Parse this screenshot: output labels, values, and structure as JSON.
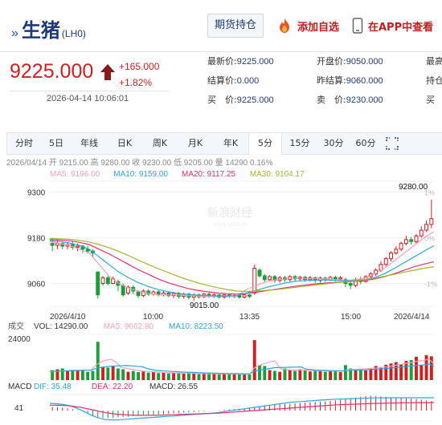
{
  "header": {
    "arrow_glyph": "»",
    "title": "生猪",
    "code": "(LH0)",
    "futures_button": "期货持仓",
    "add_favorite": "添加自选",
    "app_link": "在APP中查看"
  },
  "quote": {
    "price": "9225.000",
    "change": "+165.000",
    "change_pct": "+1.82%",
    "datetime": "2026-04-14 10:06:01",
    "col1": [
      {
        "label": "最新价:",
        "value": "9225.000"
      },
      {
        "label": "结算价:",
        "value": "0.000"
      },
      {
        "label": "买　价:",
        "value": "9225.000"
      }
    ],
    "col2": [
      {
        "label": "开盘价:",
        "value": "9050.000"
      },
      {
        "label": "昨结算:",
        "value": "9060.000"
      },
      {
        "label": "卖　价:",
        "value": "9230.000"
      }
    ],
    "col3": [
      {
        "label": "最高",
        "value": ""
      },
      {
        "label": "持仓",
        "value": ""
      },
      {
        "label": "买",
        "value": ""
      }
    ]
  },
  "tabs": [
    "分时",
    "5日",
    "年线",
    "日K",
    "周K",
    "月K",
    "年K",
    "5分",
    "15分",
    "30分",
    "60分"
  ],
  "active_tab": "5分",
  "colors": {
    "up": "#d01f1f",
    "down": "#1a9e3a",
    "ma5": "#f5a0c0",
    "ma10": "#2aa7e0",
    "ma20": "#e0306e",
    "ma30": "#9cb82c",
    "navy": "#1f3a7a"
  },
  "chart": {
    "info_line": "2026/04/14 开 9215.00 高 9280.00 收 9230.00 低 9205.00 量 14290 0.16%",
    "ma_legend": [
      {
        "label": "MA5: 9196.00",
        "color": "#f5a0c0"
      },
      {
        "label": "MA10: 9159.00",
        "color": "#2aa7e0"
      },
      {
        "label": "MA20: 9117.25",
        "color": "#e0306e"
      },
      {
        "label": "MA30: 9104.17",
        "color": "#9cb82c"
      }
    ],
    "price_ticks": [
      "9300",
      "9180",
      "9060"
    ],
    "right_pct": [
      "1%",
      "0%",
      "-1%"
    ],
    "high_label": "9280.00",
    "low_label": "9015.00",
    "time_labels": [
      "2026/4/10",
      "10:00",
      "13:35",
      "15:00",
      "2026/4/14"
    ],
    "watermark": "新浪财经",
    "watermark_sub": "sina.com.cn",
    "vol_title": "成交",
    "vol_legend": [
      {
        "label": "VOL: 14290.00",
        "color": "#333333"
      },
      {
        "label": "MA5: 9662.80",
        "color": "#f5a0c0"
      },
      {
        "label": "MA10: 8223.50",
        "color": "#2aa7e0"
      }
    ],
    "vol_tick": "24000",
    "macd_title": "MACD",
    "macd_legend": [
      {
        "label": "DIF: 35.48",
        "color": "#2aa7e0"
      },
      {
        "label": "DEA: 22.20",
        "color": "#e0306e"
      },
      {
        "label": "MACD: 26.55",
        "color": "#333333"
      }
    ],
    "macd_tick": "41"
  },
  "chart_data": {
    "type": "candlestick",
    "price_axis": {
      "ylim": [
        9000,
        9320
      ],
      "ticks": [
        9300,
        9180,
        9060
      ]
    },
    "candles": [
      {
        "o": 9165,
        "c": 9160,
        "h": 9180,
        "l": 9145
      },
      {
        "o": 9160,
        "c": 9165,
        "h": 9175,
        "l": 9150
      },
      {
        "o": 9165,
        "c": 9158,
        "h": 9170,
        "l": 9150
      },
      {
        "o": 9158,
        "c": 9162,
        "h": 9168,
        "l": 9150
      },
      {
        "o": 9162,
        "c": 9155,
        "h": 9170,
        "l": 9148
      },
      {
        "o": 9155,
        "c": 9158,
        "h": 9165,
        "l": 9145
      },
      {
        "o": 9158,
        "c": 9150,
        "h": 9162,
        "l": 9140
      },
      {
        "o": 9150,
        "c": 9145,
        "h": 9158,
        "l": 9138
      },
      {
        "o": 9145,
        "c": 9140,
        "h": 9150,
        "l": 9130
      },
      {
        "o": 9090,
        "c": 9030,
        "h": 9092,
        "l": 9020
      },
      {
        "o": 9060,
        "c": 9075,
        "h": 9080,
        "l": 9055
      },
      {
        "o": 9075,
        "c": 9060,
        "h": 9080,
        "l": 9055
      },
      {
        "o": 9060,
        "c": 9072,
        "h": 9078,
        "l": 9058
      },
      {
        "o": 9065,
        "c": 9055,
        "h": 9070,
        "l": 9040
      },
      {
        "o": 9055,
        "c": 9030,
        "h": 9060,
        "l": 9025
      },
      {
        "o": 9035,
        "c": 9050,
        "h": 9055,
        "l": 9030
      },
      {
        "o": 9050,
        "c": 9040,
        "h": 9055,
        "l": 9032
      },
      {
        "o": 9038,
        "c": 9028,
        "h": 9042,
        "l": 9022
      },
      {
        "o": 9028,
        "c": 9040,
        "h": 9045,
        "l": 9024
      },
      {
        "o": 9040,
        "c": 9032,
        "h": 9045,
        "l": 9028
      },
      {
        "o": 9032,
        "c": 9038,
        "h": 9042,
        "l": 9028
      },
      {
        "o": 9038,
        "c": 9030,
        "h": 9042,
        "l": 9026
      },
      {
        "o": 9030,
        "c": 9035,
        "h": 9040,
        "l": 9026
      },
      {
        "o": 9035,
        "c": 9028,
        "h": 9040,
        "l": 9024
      },
      {
        "o": 9028,
        "c": 9034,
        "h": 9038,
        "l": 9022
      },
      {
        "o": 9034,
        "c": 9026,
        "h": 9038,
        "l": 9020
      },
      {
        "o": 9026,
        "c": 9032,
        "h": 9036,
        "l": 9020
      },
      {
        "o": 9032,
        "c": 9024,
        "h": 9036,
        "l": 9018
      },
      {
        "o": 9024,
        "c": 9030,
        "h": 9034,
        "l": 9015
      },
      {
        "o": 9030,
        "c": 9025,
        "h": 9034,
        "l": 9020
      },
      {
        "o": 9025,
        "c": 9032,
        "h": 9036,
        "l": 9022
      },
      {
        "o": 9032,
        "c": 9026,
        "h": 9036,
        "l": 9022
      },
      {
        "o": 9026,
        "c": 9030,
        "h": 9034,
        "l": 9022
      },
      {
        "o": 9030,
        "c": 9024,
        "h": 9032,
        "l": 9020
      },
      {
        "o": 9024,
        "c": 9030,
        "h": 9034,
        "l": 9020
      },
      {
        "o": 9030,
        "c": 9026,
        "h": 9034,
        "l": 9022
      },
      {
        "o": 9026,
        "c": 9028,
        "h": 9032,
        "l": 9022
      },
      {
        "o": 9028,
        "c": 9024,
        "h": 9032,
        "l": 9020
      },
      {
        "o": 9024,
        "c": 9030,
        "h": 9034,
        "l": 9020
      },
      {
        "o": 9030,
        "c": 9026,
        "h": 9032,
        "l": 9022
      },
      {
        "o": 9035,
        "c": 9100,
        "h": 9110,
        "l": 9030
      },
      {
        "o": 9095,
        "c": 9080,
        "h": 9100,
        "l": 9075
      },
      {
        "o": 9080,
        "c": 9070,
        "h": 9085,
        "l": 9062
      },
      {
        "o": 9070,
        "c": 9078,
        "h": 9082,
        "l": 9065
      },
      {
        "o": 9078,
        "c": 9068,
        "h": 9082,
        "l": 9062
      },
      {
        "o": 9068,
        "c": 9075,
        "h": 9080,
        "l": 9062
      },
      {
        "o": 9075,
        "c": 9070,
        "h": 9080,
        "l": 9064
      },
      {
        "o": 9070,
        "c": 9078,
        "h": 9082,
        "l": 9065
      },
      {
        "o": 9078,
        "c": 9072,
        "h": 9082,
        "l": 9066
      },
      {
        "o": 9072,
        "c": 9076,
        "h": 9080,
        "l": 9066
      },
      {
        "o": 9076,
        "c": 9070,
        "h": 9080,
        "l": 9064
      },
      {
        "o": 9070,
        "c": 9075,
        "h": 9080,
        "l": 9065
      },
      {
        "o": 9075,
        "c": 9068,
        "h": 9078,
        "l": 9062
      },
      {
        "o": 9068,
        "c": 9074,
        "h": 9078,
        "l": 9062
      },
      {
        "o": 9074,
        "c": 9070,
        "h": 9078,
        "l": 9064
      },
      {
        "o": 9070,
        "c": 9076,
        "h": 9080,
        "l": 9066
      },
      {
        "o": 9076,
        "c": 9072,
        "h": 9080,
        "l": 9066
      },
      {
        "o": 9072,
        "c": 9075,
        "h": 9080,
        "l": 9066
      },
      {
        "o": 9070,
        "c": 9060,
        "h": 9075,
        "l": 9050
      },
      {
        "o": 9060,
        "c": 9055,
        "h": 9068,
        "l": 9045
      },
      {
        "o": 9055,
        "c": 9070,
        "h": 9075,
        "l": 9050
      },
      {
        "o": 9070,
        "c": 9065,
        "h": 9078,
        "l": 9058
      },
      {
        "o": 9065,
        "c": 9078,
        "h": 9082,
        "l": 9062
      },
      {
        "o": 9078,
        "c": 9085,
        "h": 9090,
        "l": 9072
      },
      {
        "o": 9085,
        "c": 9095,
        "h": 9100,
        "l": 9080
      },
      {
        "o": 9095,
        "c": 9110,
        "h": 9118,
        "l": 9090
      },
      {
        "o": 9110,
        "c": 9125,
        "h": 9130,
        "l": 9105
      },
      {
        "o": 9125,
        "c": 9140,
        "h": 9145,
        "l": 9118
      },
      {
        "o": 9140,
        "c": 9150,
        "h": 9158,
        "l": 9135
      },
      {
        "o": 9150,
        "c": 9165,
        "h": 9170,
        "l": 9145
      },
      {
        "o": 9165,
        "c": 9175,
        "h": 9185,
        "l": 9160
      },
      {
        "o": 9175,
        "c": 9170,
        "h": 9182,
        "l": 9162
      },
      {
        "o": 9170,
        "c": 9185,
        "h": 9190,
        "l": 9165
      },
      {
        "o": 9185,
        "c": 9200,
        "h": 9210,
        "l": 9180
      },
      {
        "o": 9200,
        "c": 9215,
        "h": 9225,
        "l": 9195
      },
      {
        "o": 9215,
        "c": 9230,
        "h": 9280,
        "l": 9205
      }
    ],
    "ma_lines": {
      "MA5": [
        9170,
        9165,
        9160,
        9150,
        9140,
        9110,
        9080,
        9060,
        9048,
        9040,
        9034,
        9030,
        9030,
        9030,
        9028,
        9027,
        9026,
        9026,
        9026,
        9027,
        9045,
        9055,
        9065,
        9070,
        9072,
        9074,
        9073,
        9073,
        9072,
        9070,
        9068,
        9070,
        9074,
        9085,
        9100,
        9120,
        9140,
        9160,
        9180,
        9196
      ],
      "MA10": [
        9172,
        9170,
        9166,
        9160,
        9150,
        9130,
        9110,
        9090,
        9075,
        9062,
        9052,
        9044,
        9038,
        9034,
        9031,
        9029,
        9028,
        9027,
        9027,
        9028,
        9035,
        9042,
        9050,
        9056,
        9062,
        9066,
        9068,
        9069,
        9069,
        9068,
        9067,
        9068,
        9070,
        9076,
        9086,
        9100,
        9115,
        9130,
        9145,
        9159
      ],
      "MA20": [
        9175,
        9174,
        9172,
        9168,
        9162,
        9150,
        9138,
        9124,
        9110,
        9096,
        9084,
        9072,
        9062,
        9054,
        9047,
        9042,
        9038,
        9035,
        9033,
        9032,
        9034,
        9037,
        9041,
        9045,
        9049,
        9053,
        9056,
        9059,
        9061,
        9063,
        9064,
        9066,
        9068,
        9072,
        9078,
        9086,
        9095,
        9104,
        9111,
        9117
      ],
      "MA30": [
        9178,
        9177,
        9176,
        9173,
        9169,
        9162,
        9154,
        9144,
        9133,
        9121,
        9110,
        9099,
        9089,
        9079,
        9070,
        9062,
        9055,
        9049,
        9044,
        9040,
        9039,
        9040,
        9042,
        9044,
        9047,
        9050,
        9053,
        9056,
        9059,
        9062,
        9064,
        9067,
        9070,
        9074,
        9079,
        9084,
        9090,
        9095,
        9100,
        9104
      ]
    },
    "volume": {
      "ylim": [
        0,
        26000
      ],
      "values": [
        6000,
        6500,
        7000,
        5500,
        6200,
        5800,
        6000,
        5000,
        5500,
        23000,
        8000,
        7500,
        8200,
        7000,
        6500,
        5000,
        5500,
        4800,
        5200,
        4500,
        5000,
        4200,
        4600,
        4000,
        4400,
        4200,
        3800,
        4600,
        4000,
        3600,
        4200,
        3900,
        3700,
        3500,
        3800,
        3600,
        3400,
        3900,
        3500,
        3300,
        24000,
        9000,
        8500,
        6000,
        5500,
        5000,
        7000,
        6000,
        5500,
        6500,
        5800,
        5200,
        6000,
        5500,
        5000,
        5600,
        5300,
        4800,
        9000,
        7000,
        6000,
        6500,
        5800,
        7200,
        8500,
        7800,
        9200,
        10000,
        10800,
        9500,
        11500,
        12000,
        14000,
        9000,
        15000,
        14290
      ],
      "ma5": [
        5000,
        5200,
        5400,
        5600,
        5800,
        6000,
        6000,
        6000,
        5900,
        9000,
        11000,
        12000,
        12500,
        10500,
        7500,
        7000,
        6500,
        6000,
        5500,
        5200,
        5000,
        4800,
        4600,
        4500,
        4400,
        4300,
        4200,
        4200,
        4100,
        4000,
        3950,
        3900,
        3850,
        3800,
        3750,
        3700,
        3650,
        3600,
        3550,
        3500,
        7500,
        9000,
        10000,
        11000,
        11500,
        6800,
        6400,
        6000,
        6000,
        6000,
        5900,
        5800,
        5700,
        5600,
        5500,
        5500,
        5400,
        5300,
        6000,
        6400,
        6500,
        6700,
        6900,
        7100,
        7300,
        7600,
        8100,
        8600,
        9200,
        9700,
        10300,
        10800,
        11500,
        11700,
        12700,
        9662
      ],
      "ma10": [
        5200,
        5300,
        5400,
        5500,
        5600,
        5700,
        5800,
        5900,
        5900,
        7000,
        7600,
        8000,
        8400,
        8500,
        8600,
        8700,
        8500,
        8300,
        8000,
        7000,
        6200,
        5800,
        5600,
        5400,
        5200,
        5000,
        4800,
        4700,
        4600,
        4500,
        4400,
        4300,
        4200,
        4100,
        4000,
        3950,
        3900,
        3850,
        3800,
        3700,
        5500,
        6000,
        6500,
        7000,
        7500,
        7500,
        7600,
        7700,
        7800,
        7900,
        6600,
        6300,
        6000,
        5900,
        5800,
        5700,
        5600,
        5550,
        5700,
        5900,
        6000,
        6100,
        6200,
        6400,
        6600,
        6800,
        7100,
        7400,
        7700,
        8000,
        8300,
        8600,
        8900,
        9100,
        9700,
        8223
      ]
    },
    "macd": {
      "bars": [
        10,
        9,
        8,
        6,
        4,
        1,
        -3,
        -8,
        -14,
        -18,
        -20,
        -21,
        -20,
        -19,
        -18,
        -17,
        -16,
        -15,
        -14,
        -13,
        -12,
        -11,
        -10,
        -9,
        -8,
        -7,
        -6,
        -5,
        -4,
        -3,
        -2,
        -1,
        0,
        1,
        2,
        3,
        4,
        5,
        6,
        8,
        10,
        12,
        14,
        15,
        16,
        17,
        18,
        19,
        20,
        21,
        22,
        23,
        24,
        25,
        26,
        27,
        28,
        30,
        32,
        34,
        36,
        38,
        40,
        41,
        40,
        39,
        38,
        37,
        36,
        35,
        34,
        33,
        32,
        30,
        28,
        26.55
      ],
      "dif": [
        20,
        19,
        18,
        16,
        13,
        8,
        2,
        -5,
        -12,
        -18,
        -22,
        -25,
        -26,
        -26,
        -25,
        -24,
        -23,
        -22,
        -21,
        -20,
        -19,
        -18,
        -17,
        -16,
        -15,
        -14,
        -13,
        -12,
        -11,
        -10,
        -9,
        -8,
        -7,
        -5,
        -3,
        -1,
        1,
        3,
        5,
        7,
        9,
        11,
        13,
        15,
        17,
        19,
        21,
        23,
        24,
        25,
        26,
        27,
        28,
        29,
        30,
        31,
        31.5,
        32,
        32.5,
        33,
        33.5,
        34,
        34.5,
        35,
        35.2,
        35.3,
        35.4,
        35.5,
        35.5,
        35.5,
        35.5,
        35.5,
        35.5,
        35.5,
        35.5,
        35.48
      ],
      "dea": [
        15,
        15,
        14.5,
        14,
        13,
        11,
        9,
        6,
        3,
        0,
        -3,
        -6,
        -8,
        -10,
        -11,
        -12,
        -12.5,
        -13,
        -13,
        -13,
        -13,
        -13,
        -12.5,
        -12,
        -11.5,
        -11,
        -10.5,
        -10,
        -9.5,
        -9,
        -8.5,
        -8,
        -7.5,
        -7,
        -6,
        -5,
        -4,
        -3,
        -2,
        -1,
        0,
        1,
        2,
        3,
        4,
        5,
        6,
        7,
        8,
        9,
        10,
        11,
        12,
        13,
        14,
        15,
        16,
        16.5,
        17,
        17.5,
        18,
        18.5,
        19,
        19.5,
        20,
        20.3,
        20.6,
        20.9,
        21.2,
        21.4,
        21.6,
        21.8,
        21.9,
        22,
        22.1,
        22.2
      ]
    }
  }
}
